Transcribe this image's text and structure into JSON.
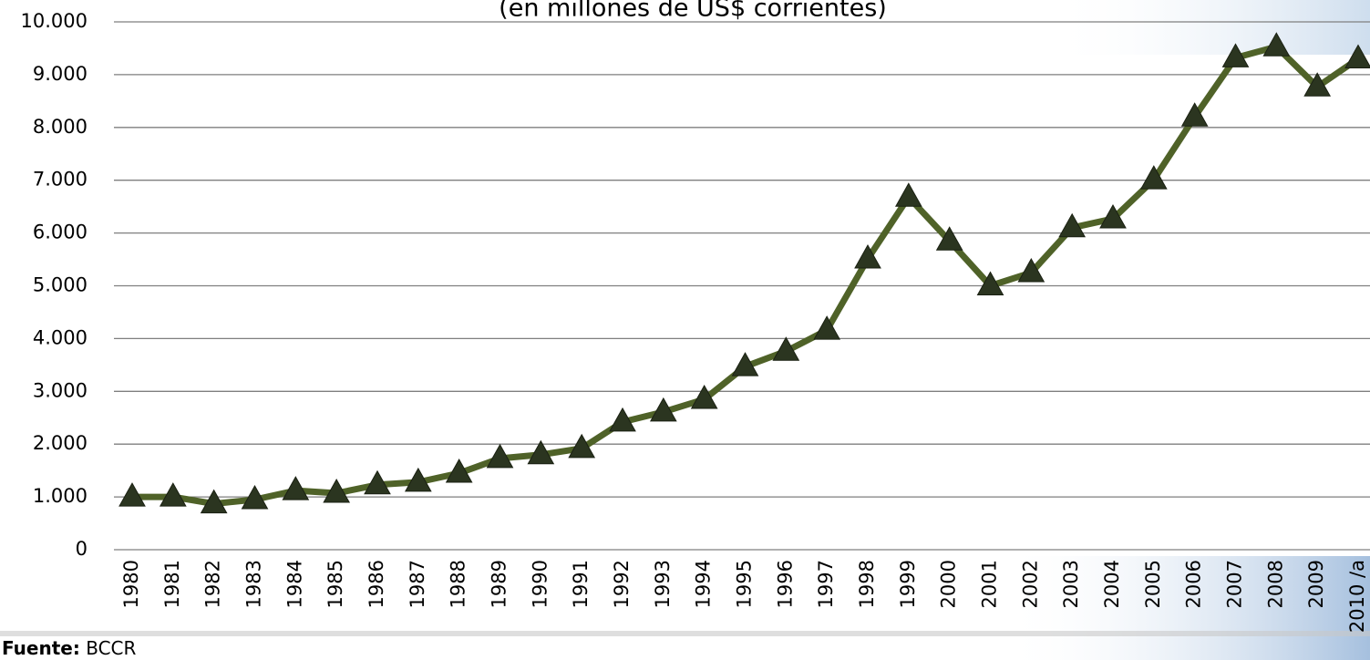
{
  "chart_data": {
    "type": "line",
    "subtitle": "(en millones de US$ corrientes)",
    "categories": [
      "1980",
      "1981",
      "1982",
      "1983",
      "1984",
      "1985",
      "1986",
      "1987",
      "1988",
      "1989",
      "1990",
      "1991",
      "1992",
      "1993",
      "1994",
      "1995",
      "1996",
      "1997",
      "1998",
      "1999",
      "2000",
      "2001",
      "2002",
      "2003",
      "2004",
      "2005",
      "2006",
      "2007",
      "2008",
      "2009",
      "2010 /a"
    ],
    "series": [
      {
        "color": "#4f6228",
        "marker_color": "#2b3520",
        "values": [
          1000,
          1000,
          870,
          950,
          1120,
          1070,
          1230,
          1280,
          1450,
          1730,
          1800,
          1920,
          2420,
          2610,
          2850,
          3470,
          3760,
          4160,
          5510,
          6680,
          5850,
          5000,
          5250,
          6100,
          6270,
          7010,
          8200,
          9320,
          9530,
          8770,
          9300
        ]
      }
    ],
    "ylim": [
      0,
      10000
    ],
    "yticks": [
      0,
      {
        "value": 1000,
        "label": "1.000"
      },
      {
        "value": 2000,
        "label": "2.000"
      },
      {
        "value": 3000,
        "label": "3.000"
      },
      {
        "value": 4000,
        "label": "4.000"
      },
      {
        "value": 5000,
        "label": "5.000"
      },
      {
        "value": 6000,
        "label": "6.000"
      },
      {
        "value": 7000,
        "label": "7.000"
      },
      {
        "value": 8000,
        "label": "8.000"
      },
      {
        "value": 9000,
        "label": "9.000"
      },
      {
        "value": 10000,
        "label": "10.000"
      }
    ],
    "grid": true,
    "source_label": "Fuente:",
    "source": "BCCR"
  }
}
